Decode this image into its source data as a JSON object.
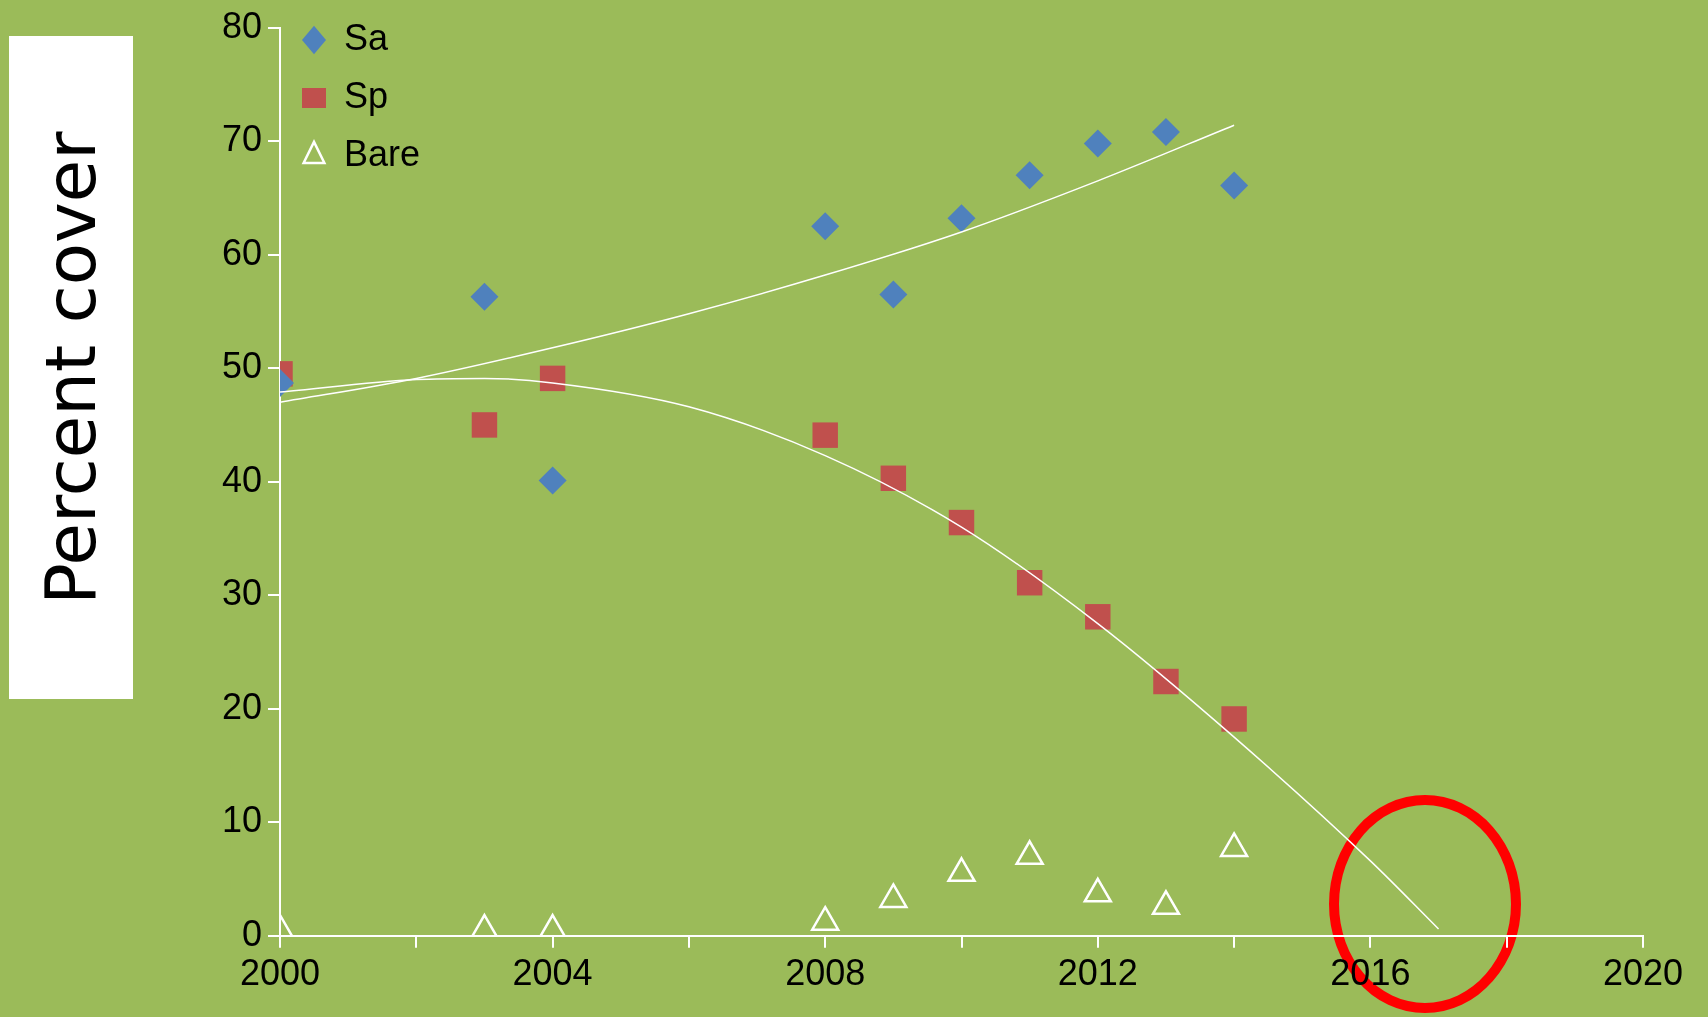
{
  "chart_data": {
    "type": "scatter",
    "ylabel": "Percent cover",
    "x": [
      2000,
      2003,
      2004,
      2008,
      2009,
      2010,
      2011,
      2012,
      2013,
      2014
    ],
    "xlim": [
      2000,
      2020
    ],
    "xticks": [
      2000,
      {
        "value": 2002,
        "label": null
      },
      2004,
      {
        "value": 2006,
        "label": null
      },
      2008,
      {
        "value": 2010,
        "label": null
      },
      2012,
      {
        "value": 2014,
        "label": null
      },
      2016,
      {
        "value": 2018,
        "label": null
      },
      2020
    ],
    "ylim": [
      0,
      80
    ],
    "yticks": [
      0,
      10,
      20,
      30,
      40,
      50,
      60,
      70,
      80
    ],
    "legend": "top left",
    "grid": false,
    "series": [
      {
        "name": "Sa",
        "color": "#4f81bd",
        "marker": "diamond",
        "values": [
          48.7,
          56.3,
          40.1,
          62.5,
          56.5,
          63.2,
          67.0,
          69.8,
          70.8,
          66.1
        ]
      },
      {
        "name": "Sp",
        "color": "#c0504d",
        "marker": "square",
        "values": [
          49.5,
          45.0,
          49.1,
          44.1,
          40.3,
          36.4,
          31.1,
          28.1,
          22.4,
          19.1
        ]
      },
      {
        "name": "Bare",
        "color": "#ffffff",
        "marker": "triangle",
        "values": [
          0.5,
          0.5,
          0.5,
          1.2,
          3.2,
          5.5,
          7.0,
          3.7,
          2.6,
          7.7
        ]
      },
      {
        "type": "line",
        "color": "#ffffff",
        "marker": "none",
        "x": [
          2000,
          2002,
          2004,
          2006,
          2008,
          2010,
          2012,
          2014
        ],
        "values": [
          47.0,
          49.1,
          51.8,
          54.8,
          58.2,
          62.0,
          66.5,
          71.4
        ]
      },
      {
        "type": "line",
        "color": "#ffffff",
        "marker": "none",
        "x": [
          2000,
          2002,
          2003,
          2004,
          2006,
          2008,
          2010,
          2012,
          2014,
          2016,
          2017
        ],
        "values": [
          47.9,
          49.0,
          49.1,
          48.7,
          46.6,
          42.3,
          36.0,
          27.5,
          17.5,
          6.6,
          0.6
        ]
      }
    ]
  }
}
